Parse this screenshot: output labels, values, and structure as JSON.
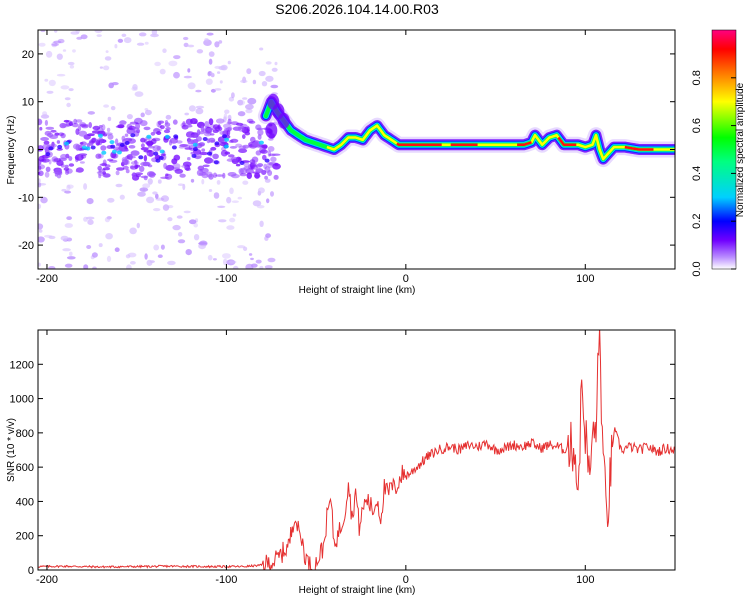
{
  "figure_title": "S206.2026.104.14.00.R03",
  "chart_data": [
    {
      "type": "heatmap",
      "title": "",
      "xlabel": "Height of straight line (km)",
      "ylabel": "Frequency (Hz)",
      "xlim": [
        -205,
        150
      ],
      "ylim": [
        -25,
        25
      ],
      "xticks": [
        -200,
        -100,
        0,
        100
      ],
      "yticks": [
        -20,
        -10,
        0,
        10,
        20
      ],
      "colorbar": {
        "label": "Normalized spectral amplitude",
        "range": [
          0,
          1
        ],
        "ticks": [
          0.0,
          0.2,
          0.4,
          0.6,
          0.8
        ],
        "colors": [
          "#ffffff",
          "#b98cff",
          "#7000ff",
          "#0000ff",
          "#00d0ff",
          "#00ff00",
          "#ffff00",
          "#ff7700",
          "#ff0000",
          "#ff0080"
        ]
      },
      "ridge": {
        "x": [
          -205,
          -180,
          -150,
          -120,
          -100,
          -85,
          -80,
          -75,
          -72,
          -68,
          -64,
          -60,
          -56,
          -52,
          -48,
          -44,
          -40,
          -36,
          -32,
          -28,
          -24,
          -20,
          -16,
          -12,
          -8,
          -4,
          0,
          10,
          20,
          30,
          40,
          50,
          60,
          66,
          70,
          72,
          76,
          80,
          84,
          88,
          92,
          96,
          100,
          104,
          106,
          108,
          110,
          116,
          122,
          130,
          140,
          150
        ],
        "freq_hz": [
          0,
          0,
          1,
          0,
          1,
          2,
          5,
          10,
          8,
          6,
          4,
          3,
          2,
          1.5,
          1,
          0.5,
          0,
          1,
          2.5,
          2.5,
          2,
          4,
          5,
          3,
          2,
          1,
          1,
          1,
          1,
          1,
          1,
          1,
          1,
          1,
          1.5,
          3,
          1,
          2.5,
          3,
          1,
          1,
          1,
          0.5,
          1,
          3,
          0,
          -2,
          0.5,
          0.5,
          0,
          0,
          0
        ]
      },
      "noise_region_km": [
        -205,
        -72
      ]
    },
    {
      "type": "line",
      "title": "",
      "xlabel": "Height of straight line (km)",
      "ylabel": "SNR (10 * v/v)",
      "xlim": [
        -205,
        150
      ],
      "ylim": [
        0,
        1400
      ],
      "xticks": [
        -200,
        -100,
        0,
        100
      ],
      "yticks": [
        0,
        200,
        400,
        600,
        800,
        1000,
        1200
      ],
      "series": [
        {
          "name": "SNR",
          "color": "#e53030",
          "x": [
            -205,
            -190,
            -170,
            -150,
            -130,
            -110,
            -90,
            -80,
            -76,
            -72,
            -68,
            -65,
            -62,
            -60,
            -58,
            -56,
            -54,
            -52,
            -50,
            -48,
            -46,
            -44,
            -42,
            -40,
            -38,
            -36,
            -34,
            -32,
            -30,
            -28,
            -26,
            -24,
            -22,
            -20,
            -18,
            -16,
            -14,
            -12,
            -10,
            -8,
            -6,
            -4,
            -2,
            0,
            3,
            6,
            9,
            12,
            15,
            18,
            21,
            25,
            30,
            35,
            40,
            45,
            50,
            55,
            60,
            65,
            70,
            75,
            80,
            85,
            88,
            90,
            92,
            94,
            96,
            98,
            100,
            102,
            104,
            106,
            108,
            110,
            112,
            116,
            120,
            125,
            130,
            135,
            140,
            145,
            150
          ],
          "y": [
            20,
            22,
            18,
            20,
            22,
            20,
            20,
            28,
            40,
            60,
            110,
            150,
            330,
            230,
            180,
            80,
            30,
            15,
            40,
            90,
            130,
            300,
            420,
            160,
            200,
            260,
            340,
            520,
            300,
            460,
            250,
            350,
            420,
            380,
            340,
            420,
            300,
            480,
            440,
            490,
            470,
            520,
            560,
            550,
            570,
            600,
            630,
            660,
            680,
            700,
            710,
            720,
            700,
            730,
            720,
            740,
            700,
            710,
            730,
            720,
            740,
            710,
            730,
            720,
            700,
            720,
            710,
            730,
            450,
            1080,
            820,
            540,
            740,
            860,
            1380,
            620,
            280,
            820,
            700,
            720,
            700,
            720,
            690,
            710,
            700
          ]
        }
      ]
    }
  ]
}
